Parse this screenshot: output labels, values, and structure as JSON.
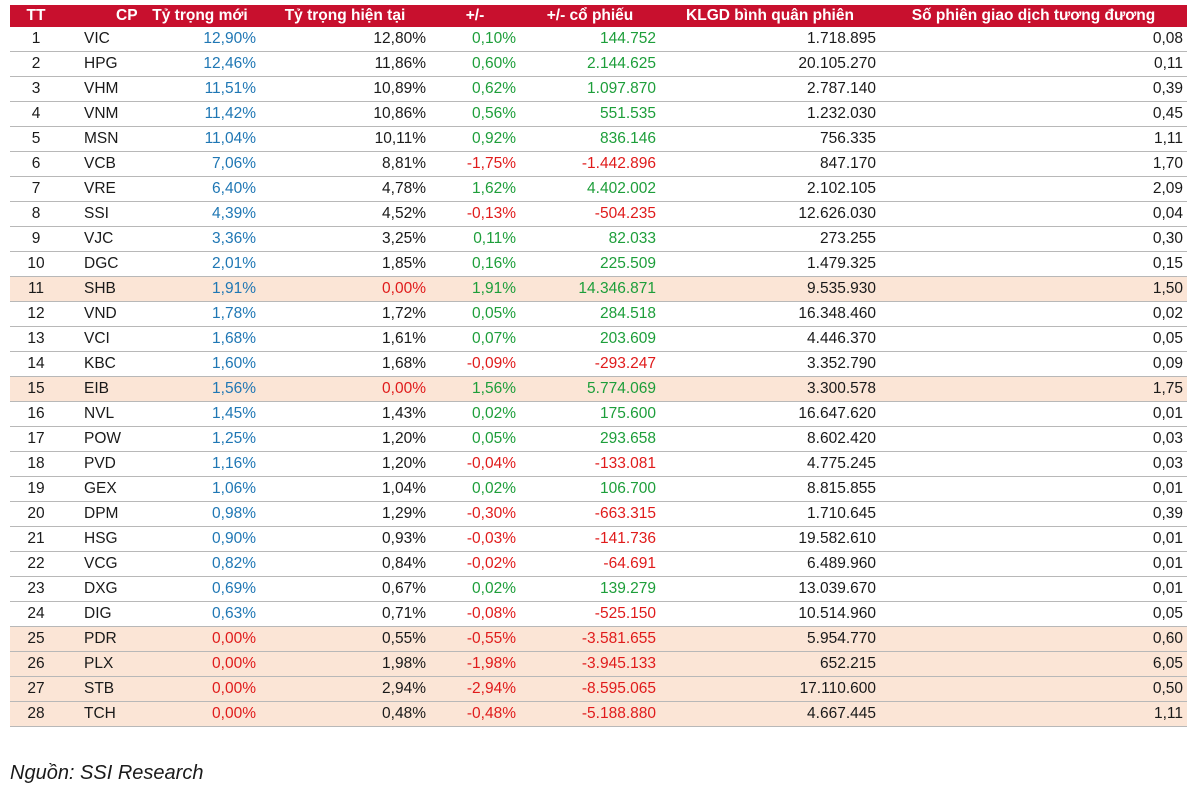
{
  "table": {
    "headers": [
      "TT",
      "CP",
      "Tỷ trọng mới",
      "Tỷ trọng hiện tại",
      "+/-",
      "+/- cổ phiếu",
      "KLGD bình quân phiên",
      "Số phiên giao dịch tương đương"
    ],
    "rows": [
      {
        "tt": "1",
        "cp": "VIC",
        "new_weight": "12,90%",
        "current_weight": "12,80%",
        "change": "0,10%",
        "change_shares": "144.752",
        "avg_volume": "1.718.895",
        "sessions": "0,08",
        "highlight": false
      },
      {
        "tt": "2",
        "cp": "HPG",
        "new_weight": "12,46%",
        "current_weight": "11,86%",
        "change": "0,60%",
        "change_shares": "2.144.625",
        "avg_volume": "20.105.270",
        "sessions": "0,11",
        "highlight": false
      },
      {
        "tt": "3",
        "cp": "VHM",
        "new_weight": "11,51%",
        "current_weight": "10,89%",
        "change": "0,62%",
        "change_shares": "1.097.870",
        "avg_volume": "2.787.140",
        "sessions": "0,39",
        "highlight": false
      },
      {
        "tt": "4",
        "cp": "VNM",
        "new_weight": "11,42%",
        "current_weight": "10,86%",
        "change": "0,56%",
        "change_shares": "551.535",
        "avg_volume": "1.232.030",
        "sessions": "0,45",
        "highlight": false
      },
      {
        "tt": "5",
        "cp": "MSN",
        "new_weight": "11,04%",
        "current_weight": "10,11%",
        "change": "0,92%",
        "change_shares": "836.146",
        "avg_volume": "756.335",
        "sessions": "1,11",
        "highlight": false
      },
      {
        "tt": "6",
        "cp": "VCB",
        "new_weight": "7,06%",
        "current_weight": "8,81%",
        "change": "-1,75%",
        "change_shares": "-1.442.896",
        "avg_volume": "847.170",
        "sessions": "1,70",
        "highlight": false
      },
      {
        "tt": "7",
        "cp": "VRE",
        "new_weight": "6,40%",
        "current_weight": "4,78%",
        "change": "1,62%",
        "change_shares": "4.402.002",
        "avg_volume": "2.102.105",
        "sessions": "2,09",
        "highlight": false
      },
      {
        "tt": "8",
        "cp": "SSI",
        "new_weight": "4,39%",
        "current_weight": "4,52%",
        "change": "-0,13%",
        "change_shares": "-504.235",
        "avg_volume": "12.626.030",
        "sessions": "0,04",
        "highlight": false
      },
      {
        "tt": "9",
        "cp": "VJC",
        "new_weight": "3,36%",
        "current_weight": "3,25%",
        "change": "0,11%",
        "change_shares": "82.033",
        "avg_volume": "273.255",
        "sessions": "0,30",
        "highlight": false
      },
      {
        "tt": "10",
        "cp": "DGC",
        "new_weight": "2,01%",
        "current_weight": "1,85%",
        "change": "0,16%",
        "change_shares": "225.509",
        "avg_volume": "1.479.325",
        "sessions": "0,15",
        "highlight": false
      },
      {
        "tt": "11",
        "cp": "SHB",
        "new_weight": "1,91%",
        "current_weight": "0,00%",
        "change": "1,91%",
        "change_shares": "14.346.871",
        "avg_volume": "9.535.930",
        "sessions": "1,50",
        "highlight": true
      },
      {
        "tt": "12",
        "cp": "VND",
        "new_weight": "1,78%",
        "current_weight": "1,72%",
        "change": "0,05%",
        "change_shares": "284.518",
        "avg_volume": "16.348.460",
        "sessions": "0,02",
        "highlight": false
      },
      {
        "tt": "13",
        "cp": "VCI",
        "new_weight": "1,68%",
        "current_weight": "1,61%",
        "change": "0,07%",
        "change_shares": "203.609",
        "avg_volume": "4.446.370",
        "sessions": "0,05",
        "highlight": false
      },
      {
        "tt": "14",
        "cp": "KBC",
        "new_weight": "1,60%",
        "current_weight": "1,68%",
        "change": "-0,09%",
        "change_shares": "-293.247",
        "avg_volume": "3.352.790",
        "sessions": "0,09",
        "highlight": false
      },
      {
        "tt": "15",
        "cp": "EIB",
        "new_weight": "1,56%",
        "current_weight": "0,00%",
        "change": "1,56%",
        "change_shares": "5.774.069",
        "avg_volume": "3.300.578",
        "sessions": "1,75",
        "highlight": true
      },
      {
        "tt": "16",
        "cp": "NVL",
        "new_weight": "1,45%",
        "current_weight": "1,43%",
        "change": "0,02%",
        "change_shares": "175.600",
        "avg_volume": "16.647.620",
        "sessions": "0,01",
        "highlight": false
      },
      {
        "tt": "17",
        "cp": "POW",
        "new_weight": "1,25%",
        "current_weight": "1,20%",
        "change": "0,05%",
        "change_shares": "293.658",
        "avg_volume": "8.602.420",
        "sessions": "0,03",
        "highlight": false
      },
      {
        "tt": "18",
        "cp": "PVD",
        "new_weight": "1,16%",
        "current_weight": "1,20%",
        "change": "-0,04%",
        "change_shares": "-133.081",
        "avg_volume": "4.775.245",
        "sessions": "0,03",
        "highlight": false
      },
      {
        "tt": "19",
        "cp": "GEX",
        "new_weight": "1,06%",
        "current_weight": "1,04%",
        "change": "0,02%",
        "change_shares": "106.700",
        "avg_volume": "8.815.855",
        "sessions": "0,01",
        "highlight": false
      },
      {
        "tt": "20",
        "cp": "DPM",
        "new_weight": "0,98%",
        "current_weight": "1,29%",
        "change": "-0,30%",
        "change_shares": "-663.315",
        "avg_volume": "1.710.645",
        "sessions": "0,39",
        "highlight": false
      },
      {
        "tt": "21",
        "cp": "HSG",
        "new_weight": "0,90%",
        "current_weight": "0,93%",
        "change": "-0,03%",
        "change_shares": "-141.736",
        "avg_volume": "19.582.610",
        "sessions": "0,01",
        "highlight": false
      },
      {
        "tt": "22",
        "cp": "VCG",
        "new_weight": "0,82%",
        "current_weight": "0,84%",
        "change": "-0,02%",
        "change_shares": "-64.691",
        "avg_volume": "6.489.960",
        "sessions": "0,01",
        "highlight": false
      },
      {
        "tt": "23",
        "cp": "DXG",
        "new_weight": "0,69%",
        "current_weight": "0,67%",
        "change": "0,02%",
        "change_shares": "139.279",
        "avg_volume": "13.039.670",
        "sessions": "0,01",
        "highlight": false
      },
      {
        "tt": "24",
        "cp": "DIG",
        "new_weight": "0,63%",
        "current_weight": "0,71%",
        "change": "-0,08%",
        "change_shares": "-525.150",
        "avg_volume": "10.514.960",
        "sessions": "0,05",
        "highlight": false
      },
      {
        "tt": "25",
        "cp": "PDR",
        "new_weight": "0,00%",
        "current_weight": "0,55%",
        "change": "-0,55%",
        "change_shares": "-3.581.655",
        "avg_volume": "5.954.770",
        "sessions": "0,60",
        "highlight": true
      },
      {
        "tt": "26",
        "cp": "PLX",
        "new_weight": "0,00%",
        "current_weight": "1,98%",
        "change": "-1,98%",
        "change_shares": "-3.945.133",
        "avg_volume": "652.215",
        "sessions": "6,05",
        "highlight": true
      },
      {
        "tt": "27",
        "cp": "STB",
        "new_weight": "0,00%",
        "current_weight": "2,94%",
        "change": "-2,94%",
        "change_shares": "-8.595.065",
        "avg_volume": "17.110.600",
        "sessions": "0,50",
        "highlight": true
      },
      {
        "tt": "28",
        "cp": "TCH",
        "new_weight": "0,00%",
        "current_weight": "0,48%",
        "change": "-0,48%",
        "change_shares": "-5.188.880",
        "avg_volume": "4.667.445",
        "sessions": "1,11",
        "highlight": true
      }
    ]
  },
  "source": "Nguồn: SSI Research",
  "colors": {
    "header_bg": "#c8102e",
    "highlight_row": "#fbe5d6",
    "new_weight_text": "#1f77b4",
    "positive": "#1d9e3a",
    "negative": "#e01b1b"
  }
}
